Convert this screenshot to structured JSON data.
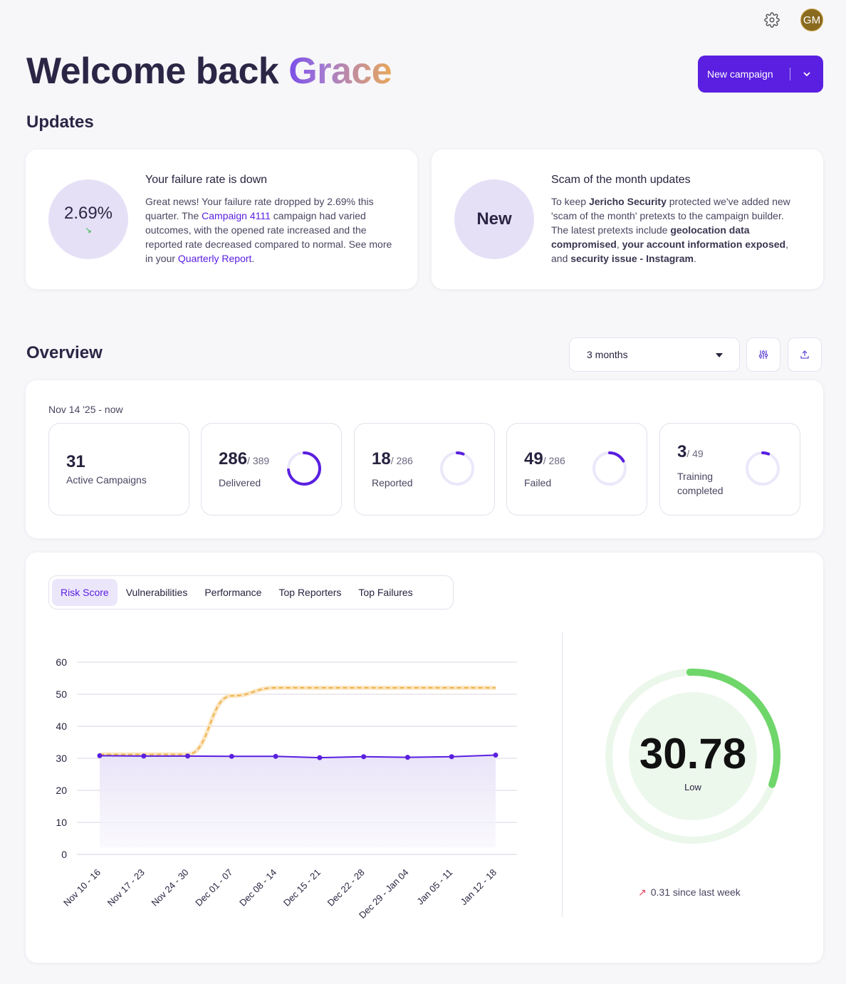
{
  "header": {
    "avatar_initials": "GM"
  },
  "welcome": {
    "prefix": "Welcome back",
    "name": "Grace"
  },
  "new_campaign": {
    "label": "New campaign"
  },
  "updates": {
    "title": "Updates",
    "failure": {
      "value": "2.69%",
      "title": "Your failure rate is down",
      "t1": "Great news! Your failure rate dropped by 2.69% this quarter. The ",
      "link1": "Campaign 4111",
      "t2": " campaign had varied outcomes, with the opened rate increased and the reported rate decreased compared to normal. See more in your ",
      "link2": "Quarterly Report",
      "t3": "."
    },
    "scam": {
      "badge": "New",
      "title": "Scam of the month updates",
      "t1": "To keep ",
      "b1": "Jericho Security",
      "t2": " protected we've added new 'scam of the month' pretexts to the campaign builder. The latest pretexts include ",
      "b2": "geolocation data compromised",
      "t3": ", ",
      "b3": "your account information exposed",
      "t4": ", and ",
      "b4": "security issue - Instagram",
      "t5": "."
    }
  },
  "overview": {
    "title": "Overview",
    "period": "3 months",
    "date_range": "Nov 14 '25 - now",
    "stats": [
      {
        "num": "31",
        "of": "",
        "label": "Active Campaigns",
        "fraction": null
      },
      {
        "num": "286",
        "of": "/ 389",
        "label": "Delivered",
        "fraction": 0.735
      },
      {
        "num": "18",
        "of": "/ 286",
        "label": "Reported",
        "fraction": 0.063
      },
      {
        "num": "49",
        "of": "/ 286",
        "label": "Failed",
        "fraction": 0.171
      },
      {
        "num": "3",
        "of": "/ 49",
        "label": "Training completed",
        "fraction": 0.061
      }
    ]
  },
  "tabs": [
    "Risk Score",
    "Vulnerabilities",
    "Performance",
    "Top Reporters",
    "Top Failures"
  ],
  "chart_data": {
    "type": "line",
    "categories": [
      "Nov 10 - 16",
      "Nov 17 - 23",
      "Nov 24 - 30",
      "Dec 01 - 07",
      "Dec 08 - 14",
      "Dec 15 - 21",
      "Dec 22 - 28",
      "Dec 29 - Jan 04",
      "Jan 05 - 11",
      "Jan 12 - 18"
    ],
    "ylim": [
      0,
      60
    ],
    "yticks": [
      "0",
      "10",
      "20",
      "30",
      "40",
      "50",
      "60"
    ],
    "series": [
      {
        "values": [
          30.8,
          30.7,
          30.7,
          30.6,
          30.6,
          30.2,
          30.5,
          30.3,
          30.5,
          31.0
        ],
        "color": "#5a1fe0"
      },
      {
        "values": [
          31.2,
          31.2,
          31.2,
          49.5,
          52.0,
          52.0,
          52.0,
          52.0,
          52.0,
          52.0
        ],
        "color": "#f0b24a"
      }
    ],
    "grid": true
  },
  "gauge": {
    "value": "30.78",
    "label": "Low",
    "fraction": 0.31,
    "change": "0.31 since last week"
  },
  "colors": {
    "accent": "#5a1fe0",
    "gauge_green": "#6fd66a",
    "gauge_bg": "#eaf7ea"
  }
}
